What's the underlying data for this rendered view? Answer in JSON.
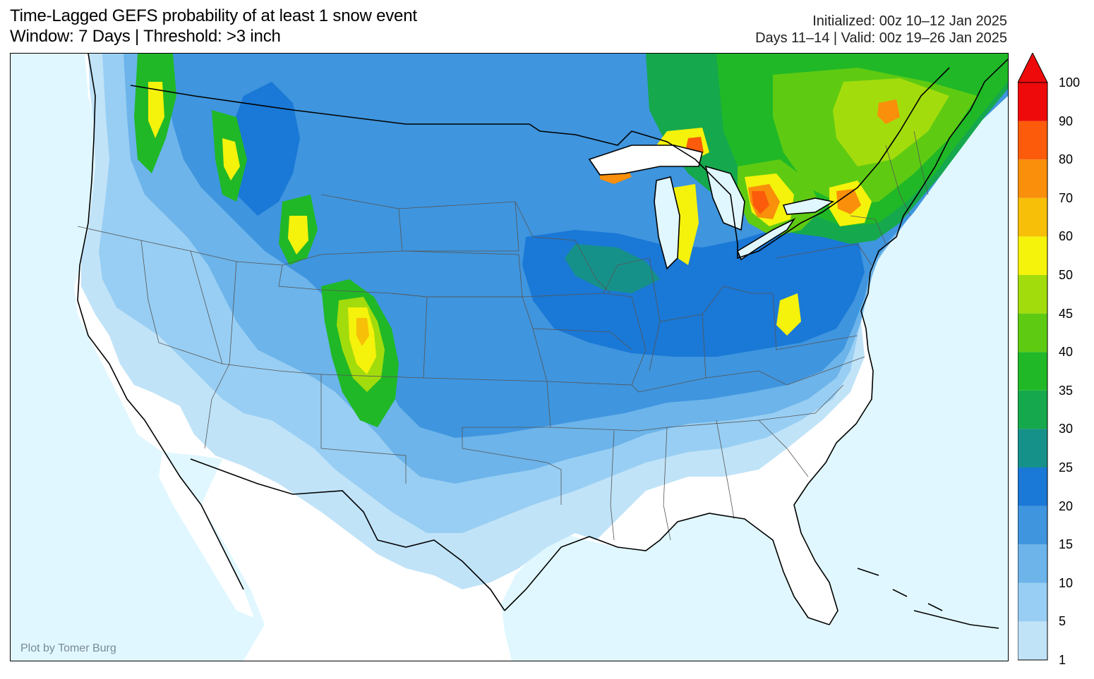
{
  "header": {
    "title_line1": "Time-Lagged GEFS probability of at least 1 snow event",
    "title_line2": "Window: 7 Days | Threshold: >3 inch",
    "init_line": "Initialized: 00z 10–12 Jan 2025",
    "valid_line": "Days 11–14 | Valid: 00z 19–26 Jan 2025"
  },
  "credit": "Plot by Tomer Burg",
  "colors": {
    "ocean": "#e0f7ff",
    "land_zero": "#ffffff",
    "border_line": "#000000",
    "state_line": "#555555"
  },
  "colorbar": {
    "levels": [
      1,
      5,
      10,
      15,
      20,
      25,
      30,
      35,
      40,
      45,
      50,
      60,
      70,
      80,
      90,
      100
    ],
    "tick_labels": [
      "1",
      "5",
      "10",
      "15",
      "20",
      "25",
      "30",
      "35",
      "40",
      "45",
      "50",
      "60",
      "70",
      "80",
      "90",
      "100"
    ],
    "colors": [
      "#c0e3f8",
      "#98cef3",
      "#6cb4ea",
      "#3f95de",
      "#1a78d6",
      "#16918a",
      "#16a84d",
      "#20b827",
      "#5ecb12",
      "#a3dc0c",
      "#f5f20b",
      "#f7bf07",
      "#f98f0a",
      "#fb5b0a",
      "#ee0a0a"
    ],
    "extend_color": "#ee0a0a"
  }
}
